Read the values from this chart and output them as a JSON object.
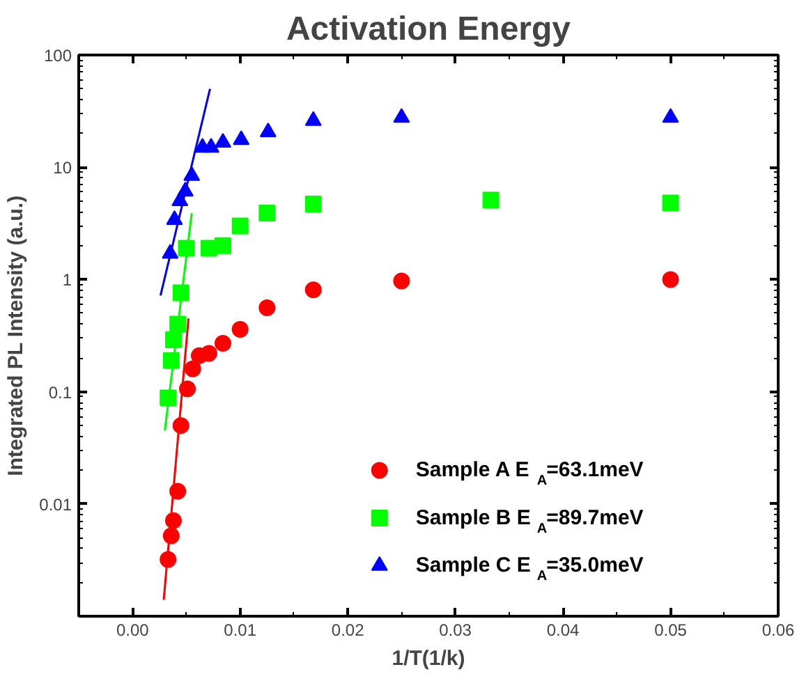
{
  "chart_data": {
    "type": "scatter",
    "title": "Activation Energy",
    "xlabel": "1/T(1/k)",
    "ylabel": "Integrated PL Intensity (a.u.)",
    "log": "y",
    "grid": false,
    "legend": "bottom right",
    "xlim": [
      -0.005,
      0.06
    ],
    "xticks": [
      {
        "value": 0.0,
        "label": "0.00"
      },
      0.01,
      0.02,
      0.03,
      0.04,
      0.05,
      {
        "value": 0.06,
        "label": "0.06"
      }
    ],
    "ylim": [
      0.001,
      100
    ],
    "yticks": [
      {
        "value": 0.001,
        "label": null
      },
      0.01,
      0.1,
      1,
      10,
      100
    ],
    "series": [
      {
        "name": "Sample A E$_{A}$=63.1meV",
        "color": "#ff0000",
        "marker": "circle",
        "x": [
          0.0033,
          0.0036,
          0.0038,
          0.0042,
          0.0045,
          0.0051,
          0.0056,
          0.0062,
          0.0071,
          0.0084,
          0.01,
          0.0125,
          0.0168,
          0.025,
          0.05
        ],
        "values": [
          0.0032,
          0.0052,
          0.0071,
          0.013,
          0.05,
          0.106,
          0.16,
          0.21,
          0.22,
          0.27,
          0.36,
          0.56,
          0.81,
          0.97,
          1.0
        ]
      },
      {
        "name": "Sample B E$_{A}$=89.7meV",
        "color": "#00ff00",
        "marker": "square",
        "x": [
          0.0033,
          0.0036,
          0.0038,
          0.0042,
          0.0045,
          0.005,
          0.0071,
          0.0084,
          0.01,
          0.0125,
          0.0168,
          0.0333,
          0.05
        ],
        "values": [
          0.088,
          0.19,
          0.29,
          0.4,
          0.76,
          1.9,
          1.9,
          2.0,
          3.0,
          3.9,
          4.7,
          5.1,
          4.8
        ]
      },
      {
        "name": "Sample C E$_{A}$=35.0meV",
        "color": "#0000ff",
        "marker": "triangle",
        "x": [
          0.0035,
          0.0039,
          0.0044,
          0.0049,
          0.0055,
          0.0065,
          0.0073,
          0.0084,
          0.0101,
          0.0126,
          0.0168,
          0.025,
          0.05
        ],
        "values": [
          1.7,
          3.4,
          5.0,
          6.1,
          8.4,
          15,
          15,
          16.6,
          17.5,
          20.6,
          26,
          27.7,
          27.7
        ]
      },
      {
        "type": "line",
        "color": "#ff0000",
        "x": [
          0.0029,
          0.0052
        ],
        "values": [
          0.0014,
          0.45
        ]
      },
      {
        "type": "line",
        "color": "#00ff00",
        "x": [
          0.003,
          0.0055
        ],
        "values": [
          0.045,
          3.9
        ]
      },
      {
        "type": "line",
        "color": "#0000ff",
        "x": [
          0.0026,
          0.0072
        ],
        "values": [
          0.72,
          50
        ]
      }
    ]
  }
}
